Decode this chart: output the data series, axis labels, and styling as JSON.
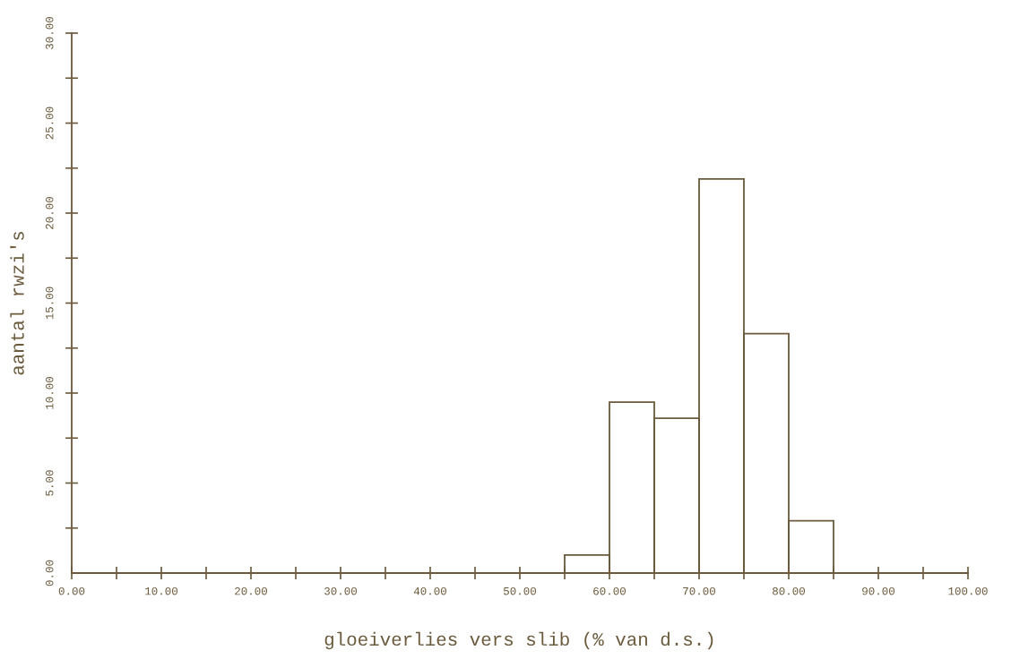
{
  "chart_data": {
    "type": "histogram",
    "xlabel": "gloeiverlies vers slib (% van d.s.)",
    "ylabel": "aantal rwzi's",
    "bins": [
      55,
      60,
      65,
      70,
      75,
      80,
      85
    ],
    "values": [
      1,
      9.5,
      8.6,
      21.9,
      13.3,
      2.9
    ],
    "color": "#6b5a3c",
    "xlim": [
      0,
      100
    ],
    "xticks": [
      {
        "value": 0,
        "label": "0.00"
      },
      {
        "value": 5,
        "label": null
      },
      {
        "value": 10,
        "label": "10.00"
      },
      {
        "value": 15,
        "label": null
      },
      {
        "value": 20,
        "label": "20.00"
      },
      {
        "value": 25,
        "label": null
      },
      {
        "value": 30,
        "label": "30.00"
      },
      {
        "value": 35,
        "label": null
      },
      {
        "value": 40,
        "label": "40.00"
      },
      {
        "value": 45,
        "label": null
      },
      {
        "value": 50,
        "label": "50.00"
      },
      {
        "value": 55,
        "label": null
      },
      {
        "value": 60,
        "label": "60.00"
      },
      {
        "value": 65,
        "label": null
      },
      {
        "value": 70,
        "label": "70.00"
      },
      {
        "value": 75,
        "label": null
      },
      {
        "value": 80,
        "label": "80.00"
      },
      {
        "value": 85,
        "label": null
      },
      {
        "value": 90,
        "label": "90.00"
      },
      {
        "value": 95,
        "label": null
      },
      {
        "value": 100,
        "label": "100.00"
      }
    ],
    "ylim": [
      0,
      30
    ],
    "yticks": [
      {
        "value": 0,
        "label": "0.00"
      },
      {
        "value": 2.5,
        "label": null
      },
      {
        "value": 5,
        "label": "5.00"
      },
      {
        "value": 7.5,
        "label": null
      },
      {
        "value": 10,
        "label": "10.00"
      },
      {
        "value": 12.5,
        "label": null
      },
      {
        "value": 15,
        "label": "15.00"
      },
      {
        "value": 17.5,
        "label": null
      },
      {
        "value": 20,
        "label": "20.00"
      },
      {
        "value": 22.5,
        "label": null
      },
      {
        "value": 25,
        "label": "25.00"
      },
      {
        "value": 27.5,
        "label": null
      },
      {
        "value": 30,
        "label": "30.00"
      }
    ],
    "grid": false
  }
}
